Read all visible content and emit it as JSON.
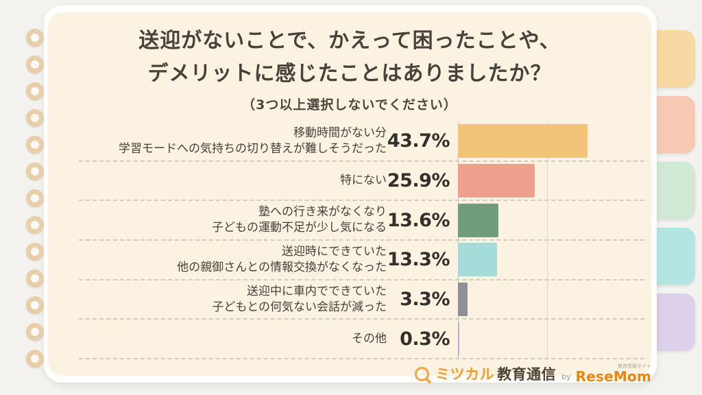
{
  "page": {
    "title_line1": "送迎がないことで、かえって困ったことや、",
    "title_line2": "デメリットに感じたことはありましたか？",
    "subtitle": "（3つ以上選択しないでください）"
  },
  "chart_data": {
    "type": "bar",
    "orientation": "horizontal",
    "title": "送迎がないことで、かえって困ったことや、デメリットに感じたことはありましたか？",
    "subtitle": "（3つ以上選択しないでください）",
    "unit": "%",
    "xlim": [
      0,
      50
    ],
    "gridlines": [
      30
    ],
    "grid": "faint vertical gridline",
    "categories": [
      [
        "移動時間がない分",
        "学習モードへの気持ちの切り替えが難しそうだった"
      ],
      [
        "特にない"
      ],
      [
        "塾への行き来がなくなり",
        "子どもの運動不足が少し気になる"
      ],
      [
        "送迎時にできていた",
        "他の親御さんとの情報交換がなくなった"
      ],
      [
        "送迎中に車内でできていた",
        "子どもとの何気ない会話が減った"
      ],
      [
        "その他"
      ]
    ],
    "values": [
      43.7,
      25.9,
      13.6,
      13.3,
      3.3,
      0.3
    ],
    "value_labels": [
      "43.7%",
      "25.9%",
      "13.6%",
      "13.3%",
      "3.3%",
      "0.3%"
    ],
    "bar_colors": [
      "#f2c479",
      "#efa08d",
      "#6f9d7b",
      "#a5dcd9",
      "#8f8f97",
      "#b9a9d4"
    ]
  },
  "side_tabs": [
    {
      "name": "tab-orange",
      "color": "#f8d9a3"
    },
    {
      "name": "tab-salmon",
      "color": "#f7c9b4"
    },
    {
      "name": "tab-mint",
      "color": "#cfe9d4"
    },
    {
      "name": "tab-aqua",
      "color": "#b5e5e2"
    },
    {
      "name": "tab-lavender",
      "color": "#dcd0eb"
    }
  ],
  "footer": {
    "brand_mitsucal": "ミツカル",
    "brand_kyoiku": "教育通信",
    "by": "by",
    "brand_resemom": "ReseMom",
    "tagline": "教育情報サイト"
  },
  "colors": {
    "page_bg": "#fbf2e2",
    "outer_bg": "#f3f2ef",
    "ring": "#e6cfa9",
    "accent_orange": "#f5a33c",
    "text_dark": "#46403a"
  }
}
